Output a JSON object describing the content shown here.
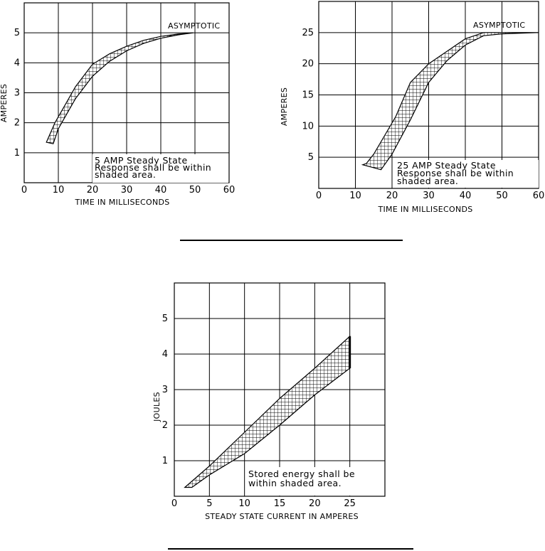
{
  "chart_data": [
    {
      "type": "area",
      "xlabel": "TIME IN MILLISECONDS",
      "ylabel": "AMPERES",
      "xlim": [
        0,
        60
      ],
      "ylim": [
        0,
        6
      ],
      "xticks": [
        0,
        10,
        20,
        30,
        40,
        50,
        60
      ],
      "yticks": [
        1,
        2,
        3,
        4,
        5
      ],
      "grid": true,
      "annotation": "ASYMPTOTIC",
      "note_lines": [
        "5 AMP Steady State",
        "Response shall be within",
        "shaded area."
      ],
      "band": {
        "upper": [
          [
            6.5,
            1.35
          ],
          [
            9,
            2.0
          ],
          [
            12,
            2.6
          ],
          [
            15,
            3.2
          ],
          [
            20,
            3.95
          ],
          [
            25,
            4.3
          ],
          [
            30,
            4.55
          ],
          [
            35,
            4.75
          ],
          [
            40,
            4.88
          ],
          [
            45,
            4.96
          ],
          [
            49.5,
            5.0
          ]
        ],
        "lower": [
          [
            49.5,
            5.0
          ],
          [
            45,
            4.93
          ],
          [
            40,
            4.82
          ],
          [
            35,
            4.65
          ],
          [
            30,
            4.4
          ],
          [
            25,
            4.05
          ],
          [
            20,
            3.55
          ],
          [
            15,
            2.8
          ],
          [
            12,
            2.2
          ],
          [
            10,
            1.8
          ],
          [
            8.5,
            1.3
          ]
        ]
      }
    },
    {
      "type": "area",
      "xlabel": "TIME IN MILLISECONDS",
      "ylabel": "AMPERES",
      "xlim": [
        0,
        60
      ],
      "ylim": [
        0,
        30
      ],
      "xticks": [
        0,
        10,
        20,
        30,
        40,
        50,
        60
      ],
      "yticks": [
        5,
        10,
        15,
        20,
        25
      ],
      "grid": true,
      "annotation": "ASYMPTOTIC",
      "note_lines": [
        "25 AMP Steady State",
        "Response shall be within",
        "shaded area."
      ],
      "band": {
        "upper": [
          [
            13,
            4.0
          ],
          [
            15,
            5.5
          ],
          [
            18,
            8.5
          ],
          [
            21,
            11.5
          ],
          [
            25,
            17.0
          ],
          [
            30,
            20.0
          ],
          [
            35,
            22.0
          ],
          [
            40,
            24.0
          ],
          [
            45,
            25.0
          ],
          [
            50,
            25.0
          ],
          [
            60,
            25.0
          ]
        ],
        "lower": [
          [
            60,
            25.0
          ],
          [
            50,
            24.8
          ],
          [
            45,
            24.5
          ],
          [
            40,
            23.0
          ],
          [
            35,
            20.5
          ],
          [
            30,
            17.0
          ],
          [
            25,
            11.0
          ],
          [
            20,
            5.5
          ],
          [
            17,
            3.0
          ],
          [
            12,
            3.8
          ]
        ]
      }
    },
    {
      "type": "area",
      "xlabel": "STEADY STATE CURRENT IN AMPERES",
      "ylabel": "JOULES",
      "xlim": [
        0,
        30
      ],
      "ylim": [
        0,
        6
      ],
      "xticks": [
        0,
        5,
        10,
        15,
        20,
        25
      ],
      "yticks": [
        1,
        2,
        3,
        4,
        5
      ],
      "grid": true,
      "note_lines": [
        "Stored energy shall be",
        "within shaded area."
      ],
      "band": {
        "upper": [
          [
            1.5,
            0.25
          ],
          [
            5,
            0.85
          ],
          [
            10,
            1.8
          ],
          [
            15,
            2.75
          ],
          [
            20,
            3.6
          ],
          [
            25,
            4.5
          ]
        ],
        "lower": [
          [
            25,
            3.6
          ],
          [
            20,
            2.85
          ],
          [
            15,
            2.0
          ],
          [
            10,
            1.2
          ],
          [
            5,
            0.6
          ],
          [
            2.5,
            0.25
          ]
        ]
      }
    }
  ]
}
